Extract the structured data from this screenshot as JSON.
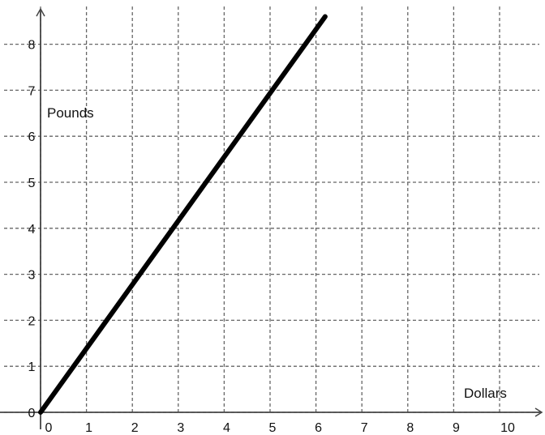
{
  "chart_data": {
    "type": "line",
    "title": "",
    "xlabel": "Dollars",
    "ylabel": "Pounds",
    "xlim": [
      0,
      11
    ],
    "ylim": [
      0,
      8.6
    ],
    "x_ticks": [
      "0",
      "1",
      "2",
      "3",
      "4",
      "5",
      "6",
      "7",
      "8",
      "9",
      "10"
    ],
    "y_ticks": [
      "0",
      "1",
      "2",
      "3",
      "4",
      "5",
      "6",
      "7",
      "8"
    ],
    "grid": true,
    "series": [
      {
        "x": [
          0,
          6.2
        ],
        "y": [
          0,
          8.6
        ],
        "color": "#000000"
      }
    ]
  }
}
